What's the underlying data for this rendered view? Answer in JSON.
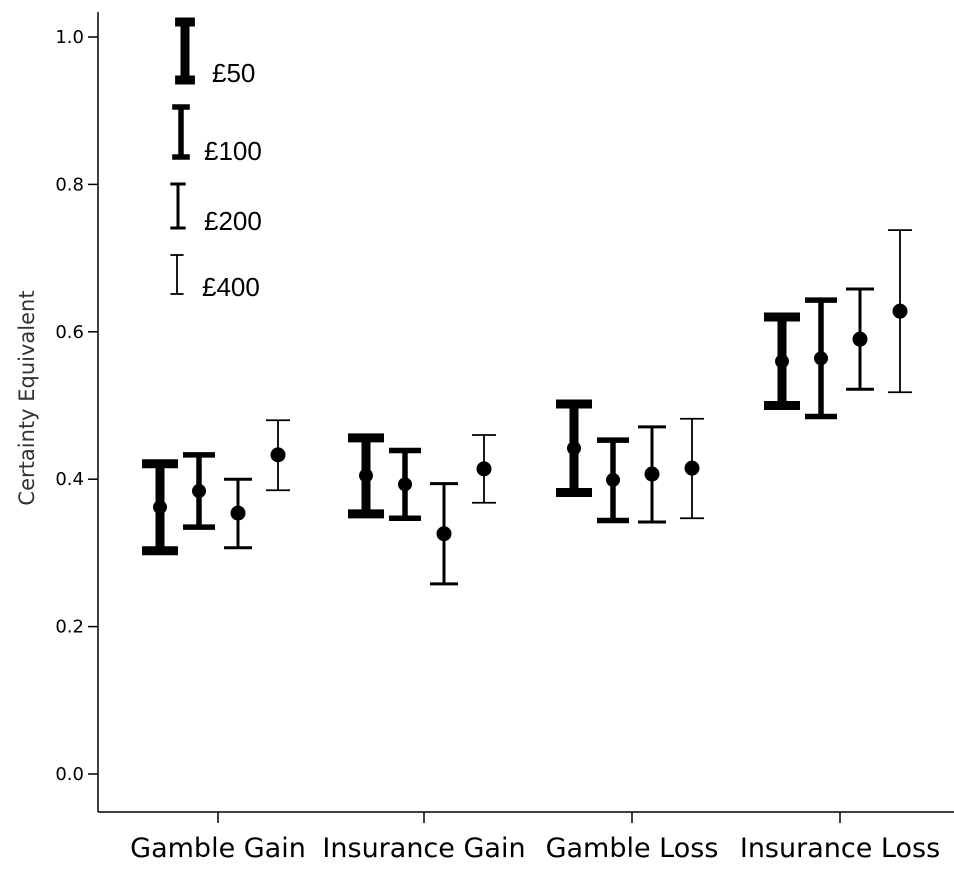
{
  "chart_data": {
    "type": "errorbar",
    "title": "",
    "xlabel": "",
    "ylabel": "Certainty Equivalent",
    "ylim": [
      0,
      1.0
    ],
    "yticks": [
      0.0,
      0.2,
      0.4,
      0.6,
      0.8,
      1.0
    ],
    "ytick_labels": [
      "0.0",
      "0.2",
      "0.4",
      "0.6",
      "0.8",
      "1.0"
    ],
    "categories": [
      "Gamble Gain",
      "Insurance Gain",
      "Gamble Loss",
      "Insurance Loss"
    ],
    "grid": false,
    "legend_position": "top-left",
    "series": [
      {
        "name": "£50",
        "mean": [
          0.362,
          0.405,
          0.442,
          0.56
        ],
        "lower": [
          0.303,
          0.353,
          0.382,
          0.5
        ],
        "upper": [
          0.421,
          0.456,
          0.502,
          0.62
        ]
      },
      {
        "name": "£100",
        "mean": [
          0.384,
          0.393,
          0.399,
          0.564
        ],
        "lower": [
          0.335,
          0.347,
          0.344,
          0.485
        ],
        "upper": [
          0.433,
          0.439,
          0.453,
          0.643
        ]
      },
      {
        "name": "£200",
        "mean": [
          0.354,
          0.326,
          0.407,
          0.59
        ],
        "lower": [
          0.307,
          0.258,
          0.342,
          0.522
        ],
        "upper": [
          0.4,
          0.394,
          0.471,
          0.658
        ]
      },
      {
        "name": "£400",
        "mean": [
          0.433,
          0.414,
          0.415,
          0.628
        ],
        "lower": [
          0.385,
          0.368,
          0.347,
          0.518
        ],
        "upper": [
          0.48,
          0.46,
          0.482,
          0.738
        ]
      }
    ]
  }
}
